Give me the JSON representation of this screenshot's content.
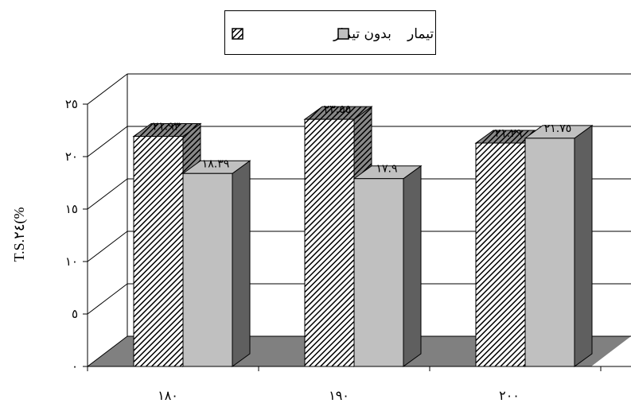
{
  "chart_data": {
    "type": "bar",
    "categories": [
      "١٨٠",
      "١٩٠",
      "٢٠٠"
    ],
    "series": [
      {
        "name": "بدون تیمار",
        "values": [
          21.93,
          23.55,
          21.29
        ],
        "value_labels": [
          "٢١.٩٣",
          "٢٣.٥٥",
          "٢١.٢٩"
        ],
        "fill": "hatched",
        "color": "#000000"
      },
      {
        "name": "با تیمار",
        "values": [
          18.39,
          17.9,
          21.75
        ],
        "value_labels": [
          "١٨.٣٩",
          "١٧.٩",
          "٢١.٧٥"
        ],
        "fill": "solid",
        "color": "#c0c0c0"
      }
    ],
    "ylabel": "T.S.٢٤(%",
    "xlabel": "",
    "ylim": [
      0,
      25
    ],
    "yticks": [
      0,
      5,
      10,
      15,
      20,
      25
    ],
    "ytick_labels": [
      "٠",
      "٥",
      "١٠",
      "١٥",
      "٢٠",
      "٢٥"
    ],
    "grid": true,
    "legend_position": "top-center",
    "style": "3d-clustered-column",
    "colors": {
      "floor": "#808080",
      "grid": "#000000",
      "side": "#5f5f5f",
      "top_light": "#a0a0a0"
    }
  }
}
